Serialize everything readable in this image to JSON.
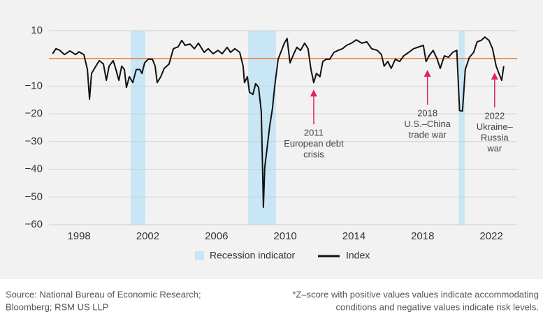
{
  "chart_data": {
    "type": "line",
    "x": [
      1996.46,
      1996.66,
      1996.86,
      1997.15,
      1997.47,
      1997.8,
      1998,
      1998.28,
      1998.49,
      1998.61,
      1998.73,
      1998.98,
      1999.18,
      1999.42,
      1999.59,
      1999.75,
      1999.99,
      2000.15,
      2000.32,
      2000.48,
      2000.64,
      2000.76,
      2000.93,
      2001.13,
      2001.33,
      2001.54,
      2001.66,
      2001.82,
      2002.02,
      2002.27,
      2002.43,
      2002.55,
      2002.76,
      2002.96,
      2003.24,
      2003.49,
      2003.77,
      2003.98,
      2004.18,
      2004.46,
      2004.71,
      2004.95,
      2005.28,
      2005.52,
      2005.8,
      2006.09,
      2006.33,
      2006.62,
      2006.82,
      2007.07,
      2007.35,
      2007.55,
      2007.63,
      2007.8,
      2007.92,
      2008.12,
      2008.28,
      2008.45,
      2008.61,
      2008.69,
      2008.73,
      2008.81,
      2008.98,
      2009.1,
      2009.26,
      2009.38,
      2009.59,
      2009.79,
      2009.95,
      2010.11,
      2010.28,
      2010.48,
      2010.68,
      2010.89,
      2011.13,
      2011.33,
      2011.5,
      2011.66,
      2011.82,
      2012.02,
      2012.19,
      2012.39,
      2012.59,
      2012.84,
      2013.08,
      2013.33,
      2013.57,
      2013.85,
      2014.14,
      2014.46,
      2014.75,
      2015.03,
      2015.36,
      2015.6,
      2015.76,
      2015.97,
      2016.17,
      2016.41,
      2016.66,
      2016.9,
      2017.19,
      2017.47,
      2017.8,
      2018.04,
      2018.2,
      2018.37,
      2018.61,
      2018.85,
      2019.02,
      2019.26,
      2019.5,
      2019.75,
      2019.99,
      2020.15,
      2020.32,
      2020.48,
      2020.72,
      2020.97,
      2021.17,
      2021.41,
      2021.62,
      2021.86,
      2022.07,
      2022.28,
      2022.44,
      2022.6,
      2022.72
    ],
    "series": [
      {
        "name": "Index",
        "color": "#111111",
        "values": [
          1.7,
          3.5,
          3,
          1.4,
          2.7,
          1.4,
          2.4,
          1.4,
          -4,
          -14.7,
          -5.4,
          -2.8,
          -0.8,
          -2,
          -7.9,
          -2.8,
          -0.8,
          -4,
          -7.9,
          -2.8,
          -4,
          -10.5,
          -6.6,
          -8.7,
          -4,
          -4,
          -5.4,
          -1.6,
          -0.3,
          -0.3,
          -2.8,
          -8.7,
          -6.6,
          -3.6,
          -2,
          3.5,
          4.2,
          6.5,
          4.7,
          5.2,
          3.5,
          5.5,
          2.2,
          3.5,
          1.7,
          2.9,
          1.7,
          4,
          2.2,
          3.5,
          2.2,
          -2.8,
          -8.7,
          -6.6,
          -12.2,
          -13,
          -9.1,
          -10.4,
          -19.2,
          -41.9,
          -53.7,
          -39.4,
          -30.6,
          -24.3,
          -18,
          -10.4,
          -0.3,
          2.9,
          5.5,
          7.2,
          -1.6,
          1.4,
          4,
          2.9,
          5.5,
          3.5,
          -4,
          -8.7,
          -5.4,
          -6.6,
          -1.1,
          -0.3,
          -0.3,
          2.2,
          2.9,
          3.5,
          4.7,
          5.5,
          6.7,
          5.5,
          6,
          3.5,
          2.9,
          1.4,
          -2.8,
          -1.1,
          -3.6,
          -0.3,
          -1.1,
          0.9,
          2.2,
          3.5,
          4.2,
          4.7,
          -1.1,
          0.9,
          2.9,
          -0.3,
          -3.6,
          0.9,
          0.4,
          2.2,
          2.9,
          -18.8,
          -19,
          -4,
          0.4,
          2.2,
          6,
          6.5,
          7.7,
          6.5,
          3.5,
          -2.8,
          -5.4,
          -7.9,
          -2.8
        ]
      }
    ],
    "shaded": {
      "name": "Recession indicator",
      "color": "#c8e6f5",
      "ranges": [
        [
          2001.01,
          2001.86
        ],
        [
          2007.84,
          2009.46
        ],
        [
          2020.11,
          2020.45
        ]
      ]
    },
    "hline": {
      "value": 0,
      "color": "#e8843c"
    },
    "xlim": [
      1995.8,
      2023.5
    ],
    "xticks": [
      1998,
      2002,
      2006,
      2010,
      2014,
      2018,
      2022
    ],
    "ylim": [
      -60,
      10
    ],
    "yticks": [
      10,
      {
        "value": -10,
        "label": "−10"
      },
      {
        "value": -20,
        "label": "−20"
      },
      {
        "value": -30,
        "label": "−30"
      },
      {
        "value": -40,
        "label": "−40"
      },
      {
        "value": -50,
        "label": "−50"
      },
      {
        "value": -60,
        "label": "−60"
      }
    ],
    "grid": true,
    "legend": "bottom",
    "annotations": [
      {
        "lines": [
          "2011",
          "European debt",
          "crisis"
        ],
        "x": 2011.66,
        "y": -11.2,
        "color": "#e0245e"
      },
      {
        "lines": [
          "2018",
          "U.S.–China",
          "trade war"
        ],
        "x": 2018.28,
        "y": -4.1,
        "color": "#e0245e"
      },
      {
        "lines": [
          "2022",
          "Ukraine–",
          "Russia",
          "war"
        ],
        "x": 2022.19,
        "y": -5.1,
        "color": "#e0245e"
      }
    ],
    "source": [
      "Source: National Bureau of Economic Research;",
      "Bloomberg; RSM US LLP"
    ],
    "note": [
      "*Z–score with positive values values indicate accommodating",
      "conditions and negative values indicate risk levels."
    ]
  }
}
